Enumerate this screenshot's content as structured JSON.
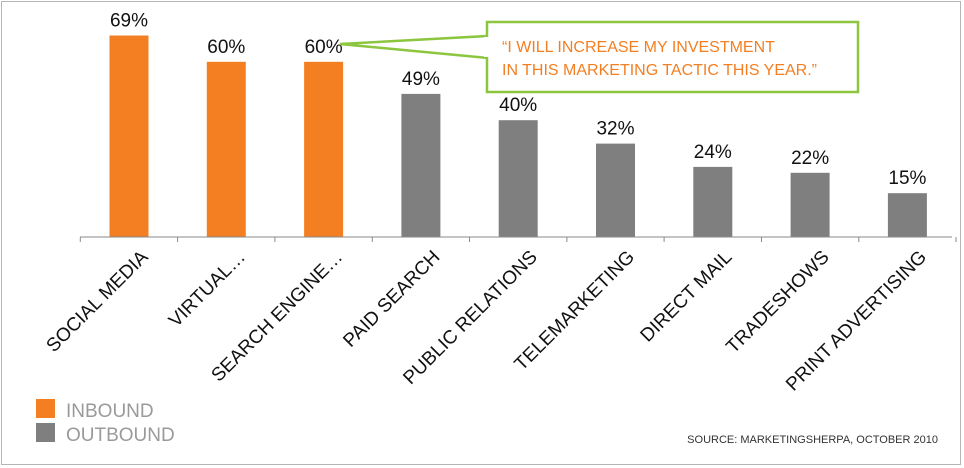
{
  "chart_data": {
    "type": "bar",
    "categories": [
      "SOCIAL MEDIA",
      "VIRTUAL…",
      "SEARCH ENGINE…",
      "PAID SEARCH",
      "PUBLIC RELATIONS",
      "TELEMARKETING",
      "DIRECT MAIL",
      "TRADESHOWS",
      "PRINT ADVERTISING"
    ],
    "values": [
      69,
      60,
      60,
      49,
      40,
      32,
      24,
      22,
      15
    ],
    "value_labels": [
      "69%",
      "60%",
      "60%",
      "49%",
      "40%",
      "32%",
      "24%",
      "22%",
      "15%"
    ],
    "groups": [
      "inbound",
      "inbound",
      "inbound",
      "outbound",
      "outbound",
      "outbound",
      "outbound",
      "outbound",
      "outbound"
    ],
    "ylim": [
      0,
      75
    ],
    "grid": false,
    "legend_position": "bottom-left",
    "legend": [
      {
        "key": "inbound",
        "label": "INBOUND",
        "color": "#f47f22"
      },
      {
        "key": "outbound",
        "label": "OUTBOUND",
        "color": "#7f7f7f"
      }
    ],
    "callout": {
      "line1": "“I WILL INCREASE MY INVESTMENT",
      "line2": "IN THIS MARKETING TACTIC THIS YEAR.”",
      "text_color": "#f47f22",
      "border_color": "#8cc63f"
    },
    "source": "SOURCE: MARKETINGSHERPA, OCTOBER 2010"
  }
}
